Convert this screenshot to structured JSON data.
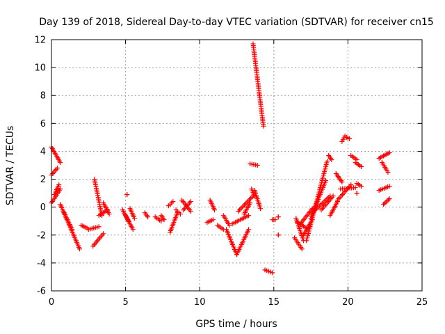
{
  "chart_data": {
    "type": "scatter",
    "title": "Day 139 of 2018, Sidereal Day-to-day VTEC variation (SDTVAR) for receiver cn15",
    "xlabel": "GPS time / hours",
    "ylabel": "SDTVAR / TECUs",
    "xlim": [
      0,
      25
    ],
    "ylim": [
      -6,
      12
    ],
    "xticks": [
      0,
      5,
      10,
      15,
      20,
      25
    ],
    "yticks": [
      -6,
      -4,
      -2,
      0,
      2,
      4,
      6,
      8,
      10,
      12
    ],
    "xtick_labels": [
      "0",
      "5",
      "10",
      "15",
      "20",
      "25"
    ],
    "ytick_labels": [
      "-6",
      "-4",
      "-2",
      "0",
      "2",
      "4",
      "6",
      "8",
      "10",
      "12"
    ],
    "grid": true,
    "marker": "plus",
    "color": "#ff0000",
    "segments": [
      {
        "name": "s1",
        "x": [
          0.0,
          0.6
        ],
        "y": [
          4.3,
          3.2
        ]
      },
      {
        "name": "s2",
        "x": [
          0.0,
          0.4
        ],
        "y": [
          2.3,
          2.8
        ]
      },
      {
        "name": "s3",
        "x": [
          0.0,
          0.6
        ],
        "y": [
          0.3,
          1.3
        ]
      },
      {
        "name": "s4",
        "x": [
          0.2,
          0.5
        ],
        "y": [
          0.9,
          1.6
        ]
      },
      {
        "name": "s5",
        "x": [
          0.6,
          1.9
        ],
        "y": [
          0.2,
          -3.0
        ]
      },
      {
        "name": "s6",
        "x": [
          0.8,
          1.4
        ],
        "y": [
          -0.3,
          -1.6
        ]
      },
      {
        "name": "s7",
        "x": [
          2.0,
          2.4
        ],
        "y": [
          -1.3,
          -1.5
        ]
      },
      {
        "name": "s8",
        "x": [
          2.5,
          3.2
        ],
        "y": [
          -1.6,
          -1.4
        ]
      },
      {
        "name": "s9",
        "x": [
          2.8,
          3.5
        ],
        "y": [
          -2.8,
          -1.9
        ]
      },
      {
        "name": "s10",
        "x": [
          2.9,
          3.4
        ],
        "y": [
          2.0,
          -0.6
        ]
      },
      {
        "name": "s11",
        "x": [
          3.2,
          3.8
        ],
        "y": [
          -0.6,
          -0.2
        ]
      },
      {
        "name": "s12",
        "x": [
          3.5,
          3.9
        ],
        "y": [
          0.3,
          -0.5
        ]
      },
      {
        "name": "s13",
        "x": [
          4.8,
          5.2
        ],
        "y": [
          -0.2,
          -1.0
        ]
      },
      {
        "name": "s14",
        "x": [
          5.0,
          5.5
        ],
        "y": [
          -0.6,
          -1.6
        ]
      },
      {
        "name": "s15",
        "x": [
          5.3,
          5.6
        ],
        "y": [
          -0.1,
          -0.8
        ]
      },
      {
        "name": "s16",
        "x": [
          5.1,
          5.1
        ],
        "y": [
          0.9,
          0.9
        ]
      },
      {
        "name": "s17",
        "x": [
          6.3,
          6.5
        ],
        "y": [
          -0.4,
          -0.7
        ]
      },
      {
        "name": "s18",
        "x": [
          7.0,
          7.4
        ],
        "y": [
          -0.7,
          -1.0
        ]
      },
      {
        "name": "s19",
        "x": [
          7.4,
          7.6
        ],
        "y": [
          -0.6,
          -0.9
        ]
      },
      {
        "name": "s20",
        "x": [
          7.9,
          8.2
        ],
        "y": [
          0.1,
          0.4
        ]
      },
      {
        "name": "s21",
        "x": [
          8.0,
          8.5
        ],
        "y": [
          -1.8,
          -0.4
        ]
      },
      {
        "name": "s22",
        "x": [
          8.4,
          8.7
        ],
        "y": [
          -0.2,
          -0.5
        ]
      },
      {
        "name": "s23",
        "x": [
          8.8,
          9.4
        ],
        "y": [
          0.5,
          -0.3
        ]
      },
      {
        "name": "s24",
        "x": [
          8.9,
          9.4
        ],
        "y": [
          -0.2,
          0.4
        ]
      },
      {
        "name": "s25",
        "x": [
          10.5,
          10.9
        ],
        "y": [
          -1.1,
          -0.9
        ]
      },
      {
        "name": "s26",
        "x": [
          10.7,
          11.0
        ],
        "y": [
          0.5,
          -0.2
        ]
      },
      {
        "name": "s27",
        "x": [
          11.2,
          11.6
        ],
        "y": [
          -1.3,
          -1.6
        ]
      },
      {
        "name": "s28",
        "x": [
          11.6,
          12.0
        ],
        "y": [
          -0.6,
          -1.3
        ]
      },
      {
        "name": "s29",
        "x": [
          11.8,
          12.5
        ],
        "y": [
          -1.6,
          -3.4
        ]
      },
      {
        "name": "s30",
        "x": [
          12.5,
          13.3
        ],
        "y": [
          -3.4,
          -1.6
        ]
      },
      {
        "name": "s31",
        "x": [
          12.2,
          13.3
        ],
        "y": [
          -1.2,
          -0.6
        ]
      },
      {
        "name": "s32",
        "x": [
          12.6,
          13.6
        ],
        "y": [
          -0.3,
          0.8
        ]
      },
      {
        "name": "s33",
        "x": [
          13.0,
          13.4
        ],
        "y": [
          -0.5,
          0.3
        ]
      },
      {
        "name": "s34",
        "x": [
          13.5,
          13.7
        ],
        "y": [
          1.3,
          0.8
        ]
      },
      {
        "name": "s35",
        "x": [
          13.7,
          14.1
        ],
        "y": [
          1.2,
          -0.1
        ]
      },
      {
        "name": "s36",
        "x": [
          13.4,
          13.9
        ],
        "y": [
          3.1,
          3.0
        ]
      },
      {
        "name": "s37",
        "x": [
          13.6,
          14.3
        ],
        "y": [
          11.7,
          5.8
        ]
      },
      {
        "name": "s38",
        "x": [
          14.4,
          14.9
        ],
        "y": [
          -4.5,
          -4.7
        ]
      },
      {
        "name": "s39",
        "x": [
          14.9,
          15.1
        ],
        "y": [
          -0.9,
          -0.9
        ]
      },
      {
        "name": "s40",
        "x": [
          15.3,
          15.3
        ],
        "y": [
          -0.7,
          -0.7
        ]
      },
      {
        "name": "s41",
        "x": [
          15.3,
          15.3
        ],
        "y": [
          -2.0,
          -2.0
        ]
      },
      {
        "name": "s42",
        "x": [
          16.4,
          16.9
        ],
        "y": [
          -2.2,
          -3.0
        ]
      },
      {
        "name": "s43",
        "x": [
          16.5,
          17.0
        ],
        "y": [
          -0.8,
          -2.4
        ]
      },
      {
        "name": "s44",
        "x": [
          16.6,
          17.2
        ],
        "y": [
          -1.1,
          -1.5
        ]
      },
      {
        "name": "s45",
        "x": [
          16.8,
          17.6
        ],
        "y": [
          -1.2,
          -0.1
        ]
      },
      {
        "name": "s46",
        "x": [
          17.0,
          17.6
        ],
        "y": [
          -2.0,
          -0.9
        ]
      },
      {
        "name": "s47",
        "x": [
          17.2,
          18.6
        ],
        "y": [
          -2.4,
          3.3
        ]
      },
      {
        "name": "s48",
        "x": [
          17.5,
          18.5
        ],
        "y": [
          -0.8,
          1.9
        ]
      },
      {
        "name": "s49",
        "x": [
          17.8,
          18.8
        ],
        "y": [
          -0.2,
          0.8
        ]
      },
      {
        "name": "s50",
        "x": [
          18.2,
          19.0
        ],
        "y": [
          -0.2,
          0.8
        ]
      },
      {
        "name": "s51",
        "x": [
          18.8,
          19.3
        ],
        "y": [
          -0.6,
          0.4
        ]
      },
      {
        "name": "s52",
        "x": [
          18.7,
          18.9
        ],
        "y": [
          3.7,
          3.4
        ]
      },
      {
        "name": "s53",
        "x": [
          19.3,
          20.2
        ],
        "y": [
          0.5,
          1.6
        ]
      },
      {
        "name": "s54",
        "x": [
          19.2,
          19.6
        ],
        "y": [
          2.4,
          1.8
        ]
      },
      {
        "name": "s55",
        "x": [
          19.6,
          19.8
        ],
        "y": [
          4.7,
          5.1
        ]
      },
      {
        "name": "s56",
        "x": [
          19.9,
          20.1
        ],
        "y": [
          5.0,
          4.9
        ]
      },
      {
        "name": "s57",
        "x": [
          19.5,
          20.5
        ],
        "y": [
          1.3,
          1.4
        ]
      },
      {
        "name": "s58",
        "x": [
          20.2,
          20.6
        ],
        "y": [
          3.7,
          3.4
        ]
      },
      {
        "name": "s59",
        "x": [
          20.5,
          20.9
        ],
        "y": [
          3.2,
          2.9
        ]
      },
      {
        "name": "s60",
        "x": [
          20.6,
          20.9
        ],
        "y": [
          1.7,
          1.5
        ]
      },
      {
        "name": "s61",
        "x": [
          20.6,
          20.6
        ],
        "y": [
          1.0,
          1.0
        ]
      },
      {
        "name": "s62",
        "x": [
          22.1,
          22.8
        ],
        "y": [
          3.5,
          3.9
        ]
      },
      {
        "name": "s63",
        "x": [
          22.3,
          22.7
        ],
        "y": [
          3.2,
          2.5
        ]
      },
      {
        "name": "s64",
        "x": [
          22.1,
          22.8
        ],
        "y": [
          1.2,
          1.5
        ]
      },
      {
        "name": "s65",
        "x": [
          22.4,
          22.8
        ],
        "y": [
          0.2,
          0.6
        ]
      }
    ]
  }
}
